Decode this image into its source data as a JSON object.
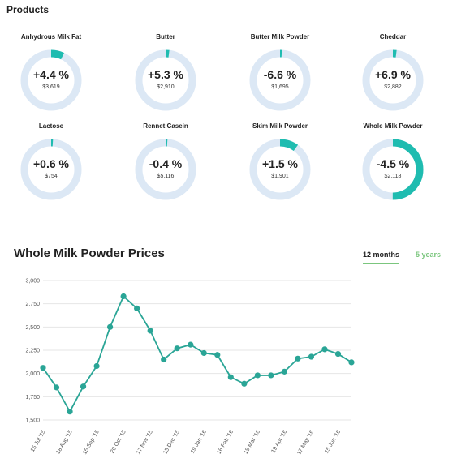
{
  "products_title": "Products",
  "products": [
    {
      "name": "Anhydrous Milk Fat",
      "change": "+4.4 %",
      "price": "$3,619",
      "fill": 0.07
    },
    {
      "name": "Butter",
      "change": "+5.3 %",
      "price": "$2,910",
      "fill": 0.02
    },
    {
      "name": "Butter Milk Powder",
      "change": "-6.6 %",
      "price": "$1,695",
      "fill": 0.01
    },
    {
      "name": "Cheddar",
      "change": "+6.9 %",
      "price": "$2,882",
      "fill": 0.02
    },
    {
      "name": "Lactose",
      "change": "+0.6 %",
      "price": "$754",
      "fill": 0.01
    },
    {
      "name": "Rennet Casein",
      "change": "-0.4 %",
      "price": "$5,116",
      "fill": 0.01
    },
    {
      "name": "Skim Milk Powder",
      "change": "+1.5 %",
      "price": "$1,901",
      "fill": 0.1
    },
    {
      "name": "Whole Milk Powder",
      "change": "-4.5 %",
      "price": "$2,118",
      "fill": 0.5
    }
  ],
  "colors": {
    "accent": "#1fbcb0",
    "track": "#dce8f5",
    "line": "#2aa596",
    "tab_accent": "#7bc67e",
    "grid": "#e6e6e6"
  },
  "chart_title": "Whole Milk Powder Prices",
  "tabs": [
    {
      "label": "12 months",
      "active": true
    },
    {
      "label": "5 years",
      "active": false
    }
  ],
  "chart_data": {
    "type": "line",
    "title": "Whole Milk Powder Prices",
    "ylim": [
      1500,
      3000
    ],
    "yticks": [
      "1,500",
      "1,750",
      "2,000",
      "2,250",
      "2,500",
      "2,750",
      "3,000"
    ],
    "ytick_values": [
      1500,
      1750,
      2000,
      2250,
      2500,
      2750,
      3000
    ],
    "xtick_labels": [
      "15 Jul '15",
      "18 Aug '15",
      "15 Sep '15",
      "20 Oct '15",
      "17 Nov '15",
      "15 Dec '15",
      "19 Jan '16",
      "16 Feb '16",
      "15 Mar '16",
      "19 Apr '16",
      "17 May '16",
      "15 Jun '16"
    ],
    "series": [
      {
        "values": [
          2060,
          1850,
          1590,
          1860,
          2080,
          2500,
          2830,
          2700,
          2460,
          2150,
          2270,
          2310,
          2220,
          2200,
          1960,
          1890,
          1980,
          1980,
          2020,
          2160,
          2180,
          2260,
          2210,
          2120
        ]
      }
    ],
    "grid": true
  }
}
